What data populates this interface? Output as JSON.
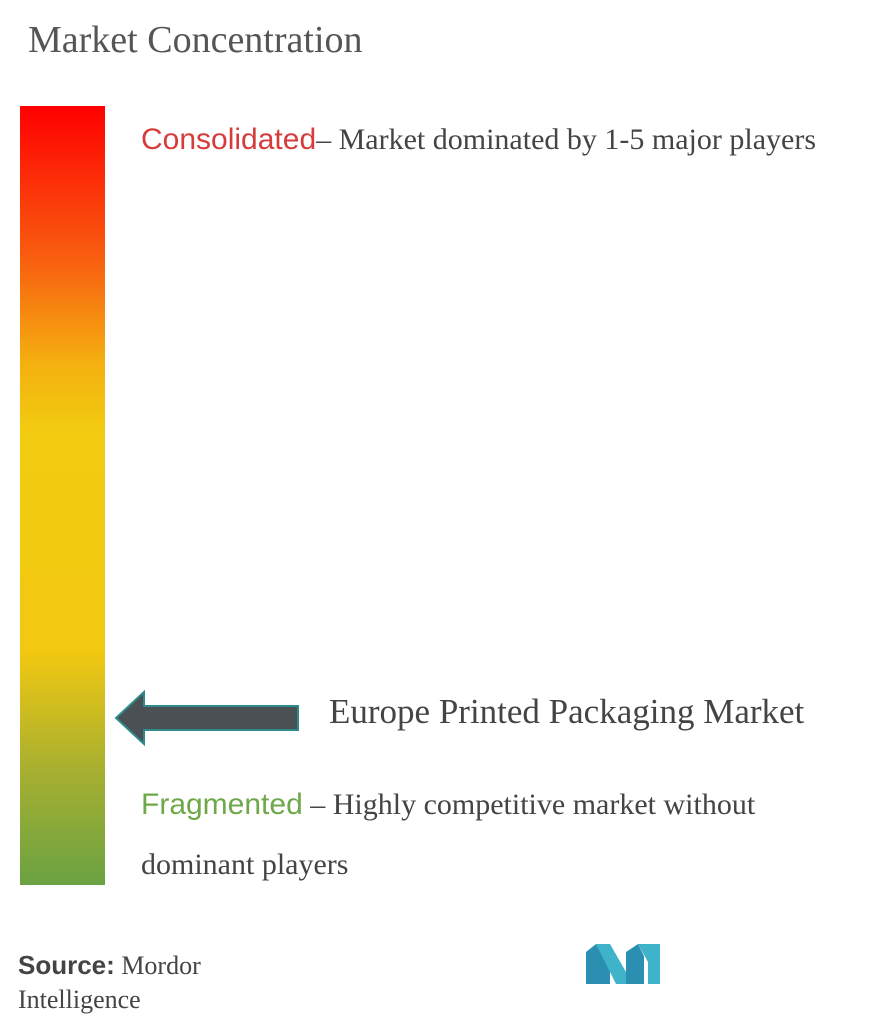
{
  "title": "Market Concentration",
  "consolidated": {
    "keyword": "Consolidated",
    "description": "– Market dominated by 1-5 major players"
  },
  "market": {
    "label": "Europe Printed Packaging Market",
    "position_fraction_from_top": 0.78
  },
  "fragmented": {
    "keyword": "Fragmented",
    "description": " – Highly competitive market without dominant players"
  },
  "source": {
    "key": "Source:",
    "value": " Mordor Intelligence"
  },
  "colors": {
    "consolidated_keyword": "#d63c3c",
    "fragmented_keyword": "#6fa84a",
    "gradient_top": "#ff0000",
    "gradient_mid": "#f2c810",
    "gradient_bottom": "#6aa242",
    "arrow": "#4a5054",
    "logo": "#3fb3c9"
  },
  "icons": {
    "arrow": "left-arrow-icon",
    "logo": "mordor-intelligence-logo"
  }
}
